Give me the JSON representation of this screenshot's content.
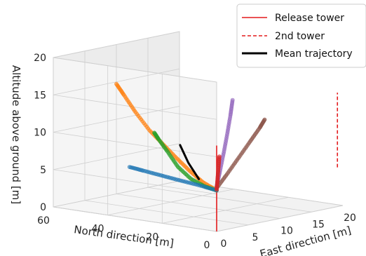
{
  "chart_data": {
    "type": "scatter",
    "subtype": "3d",
    "axes": {
      "x": {
        "label": "East direction [m]",
        "range": [
          0,
          20
        ],
        "ticks": [
          "0",
          "5",
          "10",
          "15",
          "20"
        ]
      },
      "y": {
        "label": "North direction [m]",
        "range": [
          0,
          60
        ],
        "ticks": [
          "0",
          "20",
          "40",
          "60"
        ]
      },
      "z": {
        "label": "Altitude above ground [m]",
        "range": [
          0,
          20
        ],
        "ticks": [
          "0",
          "5",
          "10",
          "15",
          "20"
        ]
      }
    },
    "grid": true,
    "legend": {
      "placement": "top-right",
      "items": [
        {
          "label": "Release tower",
          "color": "#e31a1c",
          "style": "solid"
        },
        {
          "label": "2nd tower",
          "color": "#e31a1c",
          "style": "dashed"
        },
        {
          "label": "Mean trajectory",
          "color": "#000000",
          "style": "solid-thick"
        }
      ]
    },
    "towers": [
      {
        "name": "Release tower",
        "x": 0,
        "y": 0,
        "z_from": 0,
        "z_to": 11.5
      },
      {
        "name": "2nd tower",
        "x": 20,
        "y": 2,
        "z_from": 5,
        "z_to": 15
      }
    ],
    "series": [
      {
        "color": "#ff7f0e",
        "points": [
          [
            0,
            0,
            5.5
          ],
          [
            0.4,
            6,
            6.2
          ],
          [
            0.9,
            12,
            7.3
          ],
          [
            1.4,
            18,
            8.6
          ],
          [
            1.9,
            24,
            10.0
          ],
          [
            2.3,
            30,
            11.5
          ],
          [
            2.7,
            36,
            13.5
          ],
          [
            3.0,
            41,
            15.5
          ],
          [
            3.1,
            44,
            16.8
          ]
        ]
      },
      {
        "color": "#2ca02c",
        "points": [
          [
            0,
            0,
            5.5
          ],
          [
            0.3,
            5,
            5.7
          ],
          [
            0.7,
            11,
            6.3
          ],
          [
            1.2,
            17,
            7.5
          ],
          [
            1.7,
            22,
            9.2
          ],
          [
            2.0,
            26,
            10.6
          ],
          [
            2.2,
            28,
            11.3
          ]
        ]
      },
      {
        "color": "#1f77b4",
        "points": [
          [
            0,
            0,
            5.5
          ],
          [
            0.5,
            8,
            5.7
          ],
          [
            1.0,
            16,
            5.8
          ],
          [
            1.6,
            24,
            5.9
          ],
          [
            2.2,
            32,
            6.0
          ],
          [
            2.6,
            38,
            6.1
          ]
        ]
      },
      {
        "color": "#9467bd",
        "points": [
          [
            0,
            0,
            6
          ],
          [
            0.3,
            -0.5,
            8
          ],
          [
            0.6,
            -1.2,
            10.5
          ],
          [
            0.9,
            -1.8,
            13
          ],
          [
            1.2,
            -2.3,
            15.5
          ],
          [
            1.4,
            -2.6,
            17.5
          ]
        ]
      },
      {
        "color": "#8c564b",
        "points": [
          [
            0,
            0,
            5.8
          ],
          [
            1.2,
            -1,
            7.5
          ],
          [
            2.6,
            -2,
            9.5
          ],
          [
            4.0,
            -3,
            11.5
          ],
          [
            5.2,
            -3.8,
            13.2
          ],
          [
            5.8,
            -4.2,
            14.2
          ]
        ]
      },
      {
        "color": "#d62728",
        "points": [
          [
            0,
            0,
            5.6
          ],
          [
            0.1,
            -0.1,
            7.0
          ],
          [
            0.2,
            -0.2,
            8.6
          ],
          [
            0.3,
            -0.3,
            10.0
          ]
        ]
      }
    ],
    "mean_trajectory": [
      [
        0.2,
        7,
        6.6
      ],
      [
        0.7,
        12,
        8.4
      ],
      [
        1.1,
        16,
        10.5
      ]
    ]
  }
}
